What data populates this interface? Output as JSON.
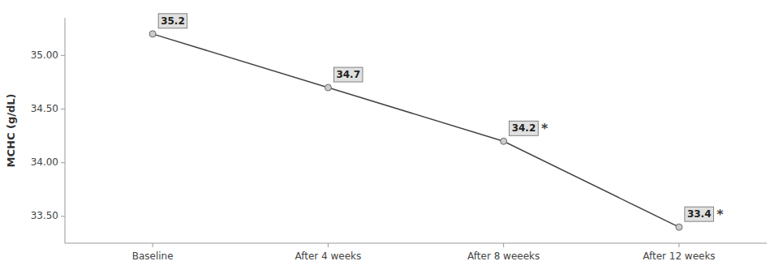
{
  "chart_data": {
    "type": "line",
    "y_label": "MCHC (g/dL)",
    "categories": [
      "Baseline",
      "After 4 weeks",
      "After 8 weeeks",
      "After 12 weeks"
    ],
    "values": [
      35.2,
      34.7,
      34.2,
      33.4
    ],
    "color": "#444444",
    "marker": "circle",
    "data_labels": true,
    "grid": false,
    "ylim": [
      33.25,
      35.35
    ],
    "yticks": [
      {
        "value": 33.5,
        "label": "33.50"
      },
      {
        "value": 34.0,
        "label": "34.00"
      },
      {
        "value": 34.5,
        "label": "34.50"
      },
      {
        "value": 35.0,
        "label": "35.00"
      }
    ],
    "annotations": [
      {
        "text": "*",
        "category": "After 8 weeeks"
      },
      {
        "text": "*",
        "category": "After 12 weeks"
      }
    ]
  }
}
